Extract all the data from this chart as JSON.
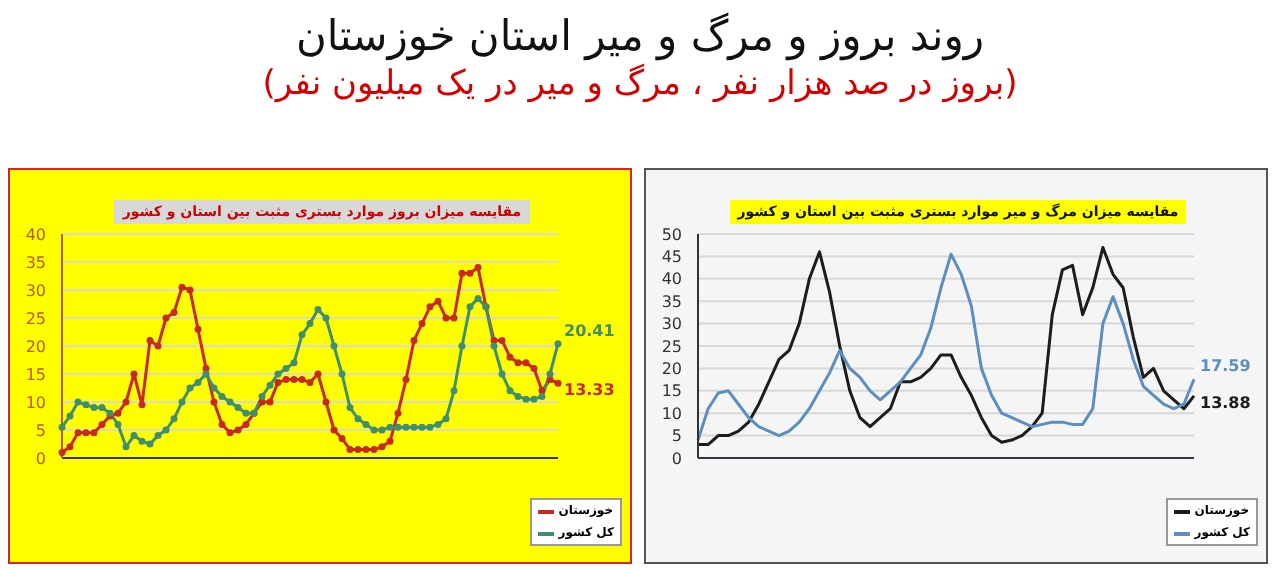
{
  "chart_data": [
    {
      "type": "other",
      "title": "روند بروز و مرگ و میر استان خوزستان",
      "subtitle": "(بروز در صد هزار نفر ، مرگ و میر در یک میلیون نفر)"
    },
    {
      "type": "line",
      "title": "مقایسه میزان بروز موارد بستری مثبت بین استان و کشور",
      "categories": [
        null,
        null,
        null,
        null,
        null,
        null,
        null,
        null,
        null,
        null,
        null,
        null,
        null,
        null,
        null,
        null,
        null,
        null,
        null,
        null,
        null,
        null,
        null,
        null,
        null,
        null,
        null,
        null,
        null,
        null,
        null,
        null,
        null,
        null,
        null,
        null,
        null,
        null,
        null,
        null,
        null,
        null,
        null,
        null,
        null,
        null,
        null,
        null,
        null,
        null,
        null,
        null,
        null,
        null,
        null,
        null,
        null,
        null,
        null,
        null,
        null,
        null,
        null
      ],
      "series": [
        {
          "name": "خوزستان",
          "color": "#c8281e",
          "values": [
            1,
            2,
            4.5,
            4.5,
            4.5,
            6,
            7.5,
            8,
            10,
            15,
            9.5,
            21,
            20,
            25,
            26,
            30.5,
            30,
            23,
            16,
            10,
            6,
            4.5,
            5,
            6,
            8,
            10,
            10,
            13.5,
            14,
            14,
            14,
            13.5,
            15,
            10,
            5,
            3.5,
            1.5,
            1.5,
            1.5,
            1.5,
            2,
            3,
            8,
            14,
            21,
            24,
            27,
            28,
            25,
            25,
            33,
            33,
            34,
            27,
            21,
            21,
            18,
            17,
            17,
            16,
            12,
            14,
            13.33
          ],
          "value_labels": [
            null,
            null,
            null,
            null,
            null,
            null,
            null,
            null,
            null,
            null,
            null,
            null,
            null,
            null,
            null,
            null,
            null,
            null,
            null,
            null,
            null,
            null,
            null,
            null,
            null,
            null,
            null,
            null,
            null,
            null,
            null,
            null,
            null,
            null,
            null,
            null,
            null,
            null,
            null,
            null,
            null,
            null,
            null,
            null,
            null,
            null,
            null,
            null,
            null,
            null,
            null,
            null,
            null,
            null,
            null,
            null,
            null,
            null,
            null,
            null,
            null,
            null,
            "13.33"
          ]
        },
        {
          "name": "کل کشور",
          "color": "#3f8f6f",
          "values": [
            5.5,
            7.5,
            10,
            9.5,
            9,
            9,
            8,
            6,
            2,
            4,
            3,
            2.5,
            4,
            5,
            7,
            10,
            12.5,
            13.5,
            15,
            12.5,
            11,
            10,
            9,
            8,
            8,
            11,
            13,
            15,
            16,
            17,
            22,
            24,
            26.5,
            25,
            20,
            15,
            9,
            7,
            6,
            5,
            5,
            5.5,
            5.5,
            5.5,
            5.5,
            5.5,
            5.5,
            6,
            7,
            12,
            20,
            27,
            28.5,
            27,
            20,
            15,
            12,
            11,
            10.5,
            10.5,
            11,
            15,
            20.41
          ],
          "value_labels": [
            null,
            null,
            null,
            null,
            null,
            null,
            null,
            null,
            null,
            null,
            null,
            null,
            null,
            null,
            null,
            null,
            null,
            null,
            null,
            null,
            null,
            null,
            null,
            null,
            null,
            null,
            null,
            null,
            null,
            null,
            null,
            null,
            null,
            null,
            null,
            null,
            null,
            null,
            null,
            null,
            null,
            null,
            null,
            null,
            null,
            null,
            null,
            null,
            null,
            null,
            null,
            null,
            null,
            null,
            null,
            null,
            null,
            null,
            null,
            null,
            null,
            null,
            "20.41"
          ]
        }
      ],
      "ylim": [
        0,
        40
      ],
      "yticks": [
        0,
        5,
        10,
        15,
        20,
        25,
        30,
        35,
        40
      ],
      "grid": "y",
      "legend": "bottom right",
      "marker": "circle"
    },
    {
      "type": "line",
      "title": "مقایسه میزان مرگ و میر موارد بستری مثبت بین استان و کشور",
      "categories": [
        null,
        null,
        null,
        null,
        null,
        null,
        null,
        null,
        null,
        null,
        null,
        null,
        null,
        null,
        null,
        null,
        null,
        null,
        null,
        null,
        null,
        null,
        null,
        null,
        null,
        null,
        null,
        null,
        null,
        null,
        null,
        null,
        null,
        null,
        null,
        null,
        null,
        null,
        null,
        null,
        null,
        null,
        null,
        null,
        null,
        null,
        null,
        null,
        null,
        null
      ],
      "series": [
        {
          "name": "خوزستان",
          "color": "#1c1c1c",
          "values": [
            3,
            3,
            5,
            5,
            6,
            8,
            12,
            17,
            22,
            24,
            30,
            40,
            46,
            37,
            25,
            15,
            9,
            7,
            9,
            11,
            17,
            17,
            18,
            20,
            23,
            23,
            18,
            14,
            9,
            5,
            3.5,
            4,
            5,
            7,
            10,
            32,
            42,
            43,
            32,
            38,
            47,
            41,
            38,
            27,
            18,
            20,
            15,
            13,
            11,
            13.88
          ],
          "value_labels": [
            null,
            null,
            null,
            null,
            null,
            null,
            null,
            null,
            null,
            null,
            null,
            null,
            null,
            null,
            null,
            null,
            null,
            null,
            null,
            null,
            null,
            null,
            null,
            null,
            null,
            null,
            null,
            null,
            null,
            null,
            null,
            null,
            null,
            null,
            null,
            null,
            null,
            null,
            null,
            null,
            null,
            null,
            null,
            null,
            null,
            null,
            null,
            null,
            null,
            "13.88"
          ]
        },
        {
          "name": "کل کشور",
          "color": "#5a8fbf",
          "values": [
            4,
            11,
            14.5,
            15,
            12,
            9,
            7,
            6,
            5,
            6,
            8,
            11,
            15,
            19,
            24,
            20,
            18,
            15,
            13,
            15,
            17,
            20,
            23,
            29,
            38,
            45.5,
            41,
            34,
            20,
            14,
            10,
            9,
            8,
            7,
            7.5,
            8,
            8,
            7.5,
            7.5,
            11,
            30,
            36,
            30,
            22,
            16,
            14,
            12,
            11,
            12,
            17.59
          ],
          "value_labels": [
            null,
            null,
            null,
            null,
            null,
            null,
            null,
            null,
            null,
            null,
            null,
            null,
            null,
            null,
            null,
            null,
            null,
            null,
            null,
            null,
            null,
            null,
            null,
            null,
            null,
            null,
            null,
            null,
            null,
            null,
            null,
            null,
            null,
            null,
            null,
            null,
            null,
            null,
            null,
            null,
            null,
            null,
            null,
            null,
            null,
            null,
            null,
            null,
            null,
            "17.59"
          ]
        }
      ],
      "ylim": [
        0,
        50
      ],
      "yticks": [
        0,
        5,
        10,
        15,
        20,
        25,
        30,
        35,
        40,
        45,
        50
      ],
      "grid": "y",
      "legend": "bottom right",
      "marker": "none"
    }
  ]
}
